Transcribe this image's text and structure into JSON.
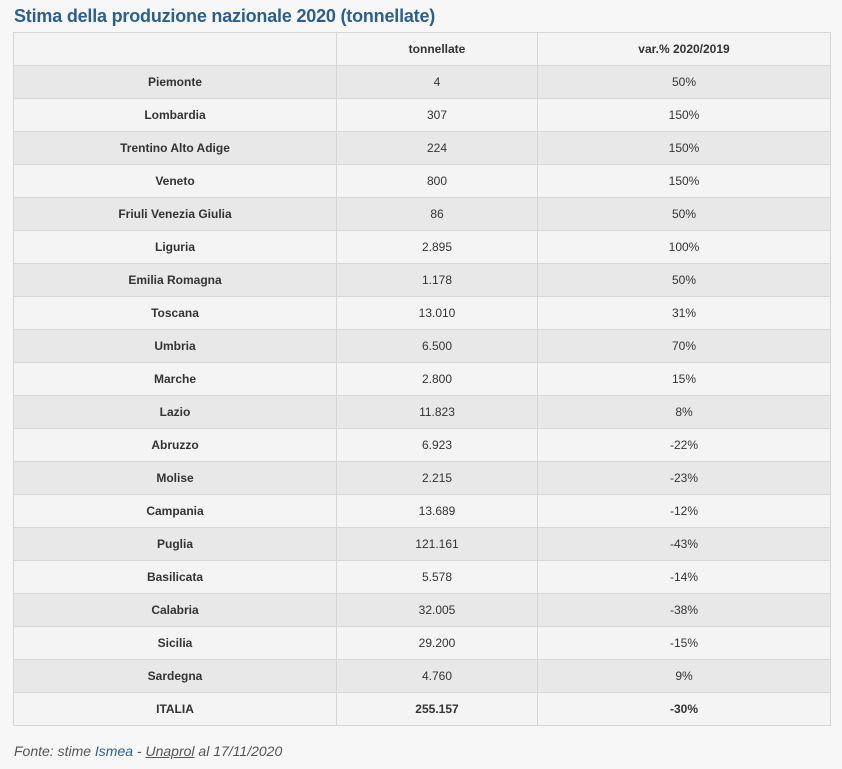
{
  "title": "Stima della produzione nazionale 2020 (tonnellate)",
  "table": {
    "headers": [
      "",
      "tonnellate",
      "var.% 2020/2019"
    ],
    "rows": [
      {
        "region": "Piemonte",
        "tons": "4",
        "var": "50%"
      },
      {
        "region": "Lombardia",
        "tons": "307",
        "var": "150%"
      },
      {
        "region": "Trentino Alto Adige",
        "tons": "224",
        "var": "150%"
      },
      {
        "region": "Veneto",
        "tons": "800",
        "var": "150%"
      },
      {
        "region": "Friuli Venezia Giulia",
        "tons": "86",
        "var": "50%"
      },
      {
        "region": "Liguria",
        "tons": "2.895",
        "var": "100%"
      },
      {
        "region": "Emilia Romagna",
        "tons": "1.178",
        "var": "50%"
      },
      {
        "region": "Toscana",
        "tons": "13.010",
        "var": "31%"
      },
      {
        "region": "Umbria",
        "tons": "6.500",
        "var": "70%"
      },
      {
        "region": "Marche",
        "tons": "2.800",
        "var": "15%"
      },
      {
        "region": "Lazio",
        "tons": "11.823",
        "var": "8%"
      },
      {
        "region": "Abruzzo",
        "tons": "6.923",
        "var": "-22%"
      },
      {
        "region": "Molise",
        "tons": "2.215",
        "var": "-23%"
      },
      {
        "region": "Campania",
        "tons": "13.689",
        "var": "-12%"
      },
      {
        "region": "Puglia",
        "tons": "121.161",
        "var": "-43%"
      },
      {
        "region": "Basilicata",
        "tons": "5.578",
        "var": "-14%"
      },
      {
        "region": "Calabria",
        "tons": "32.005",
        "var": "-38%"
      },
      {
        "region": "Sicilia",
        "tons": "29.200",
        "var": "-15%"
      },
      {
        "region": "Sardegna",
        "tons": "4.760",
        "var": "9%"
      },
      {
        "region": "ITALIA",
        "tons": "255.157",
        "var": "-30%"
      }
    ]
  },
  "source": {
    "prefix": "Fonte: stime ",
    "ismea": "Ismea",
    "separator": " - ",
    "unaprol": "Unaprol",
    "suffix": " al 17/11/2020"
  },
  "colors": {
    "title": "#2e5e8c",
    "row_odd": "#e8e8e8",
    "row_even": "#f4f4f4",
    "border": "#d6d6d6"
  }
}
